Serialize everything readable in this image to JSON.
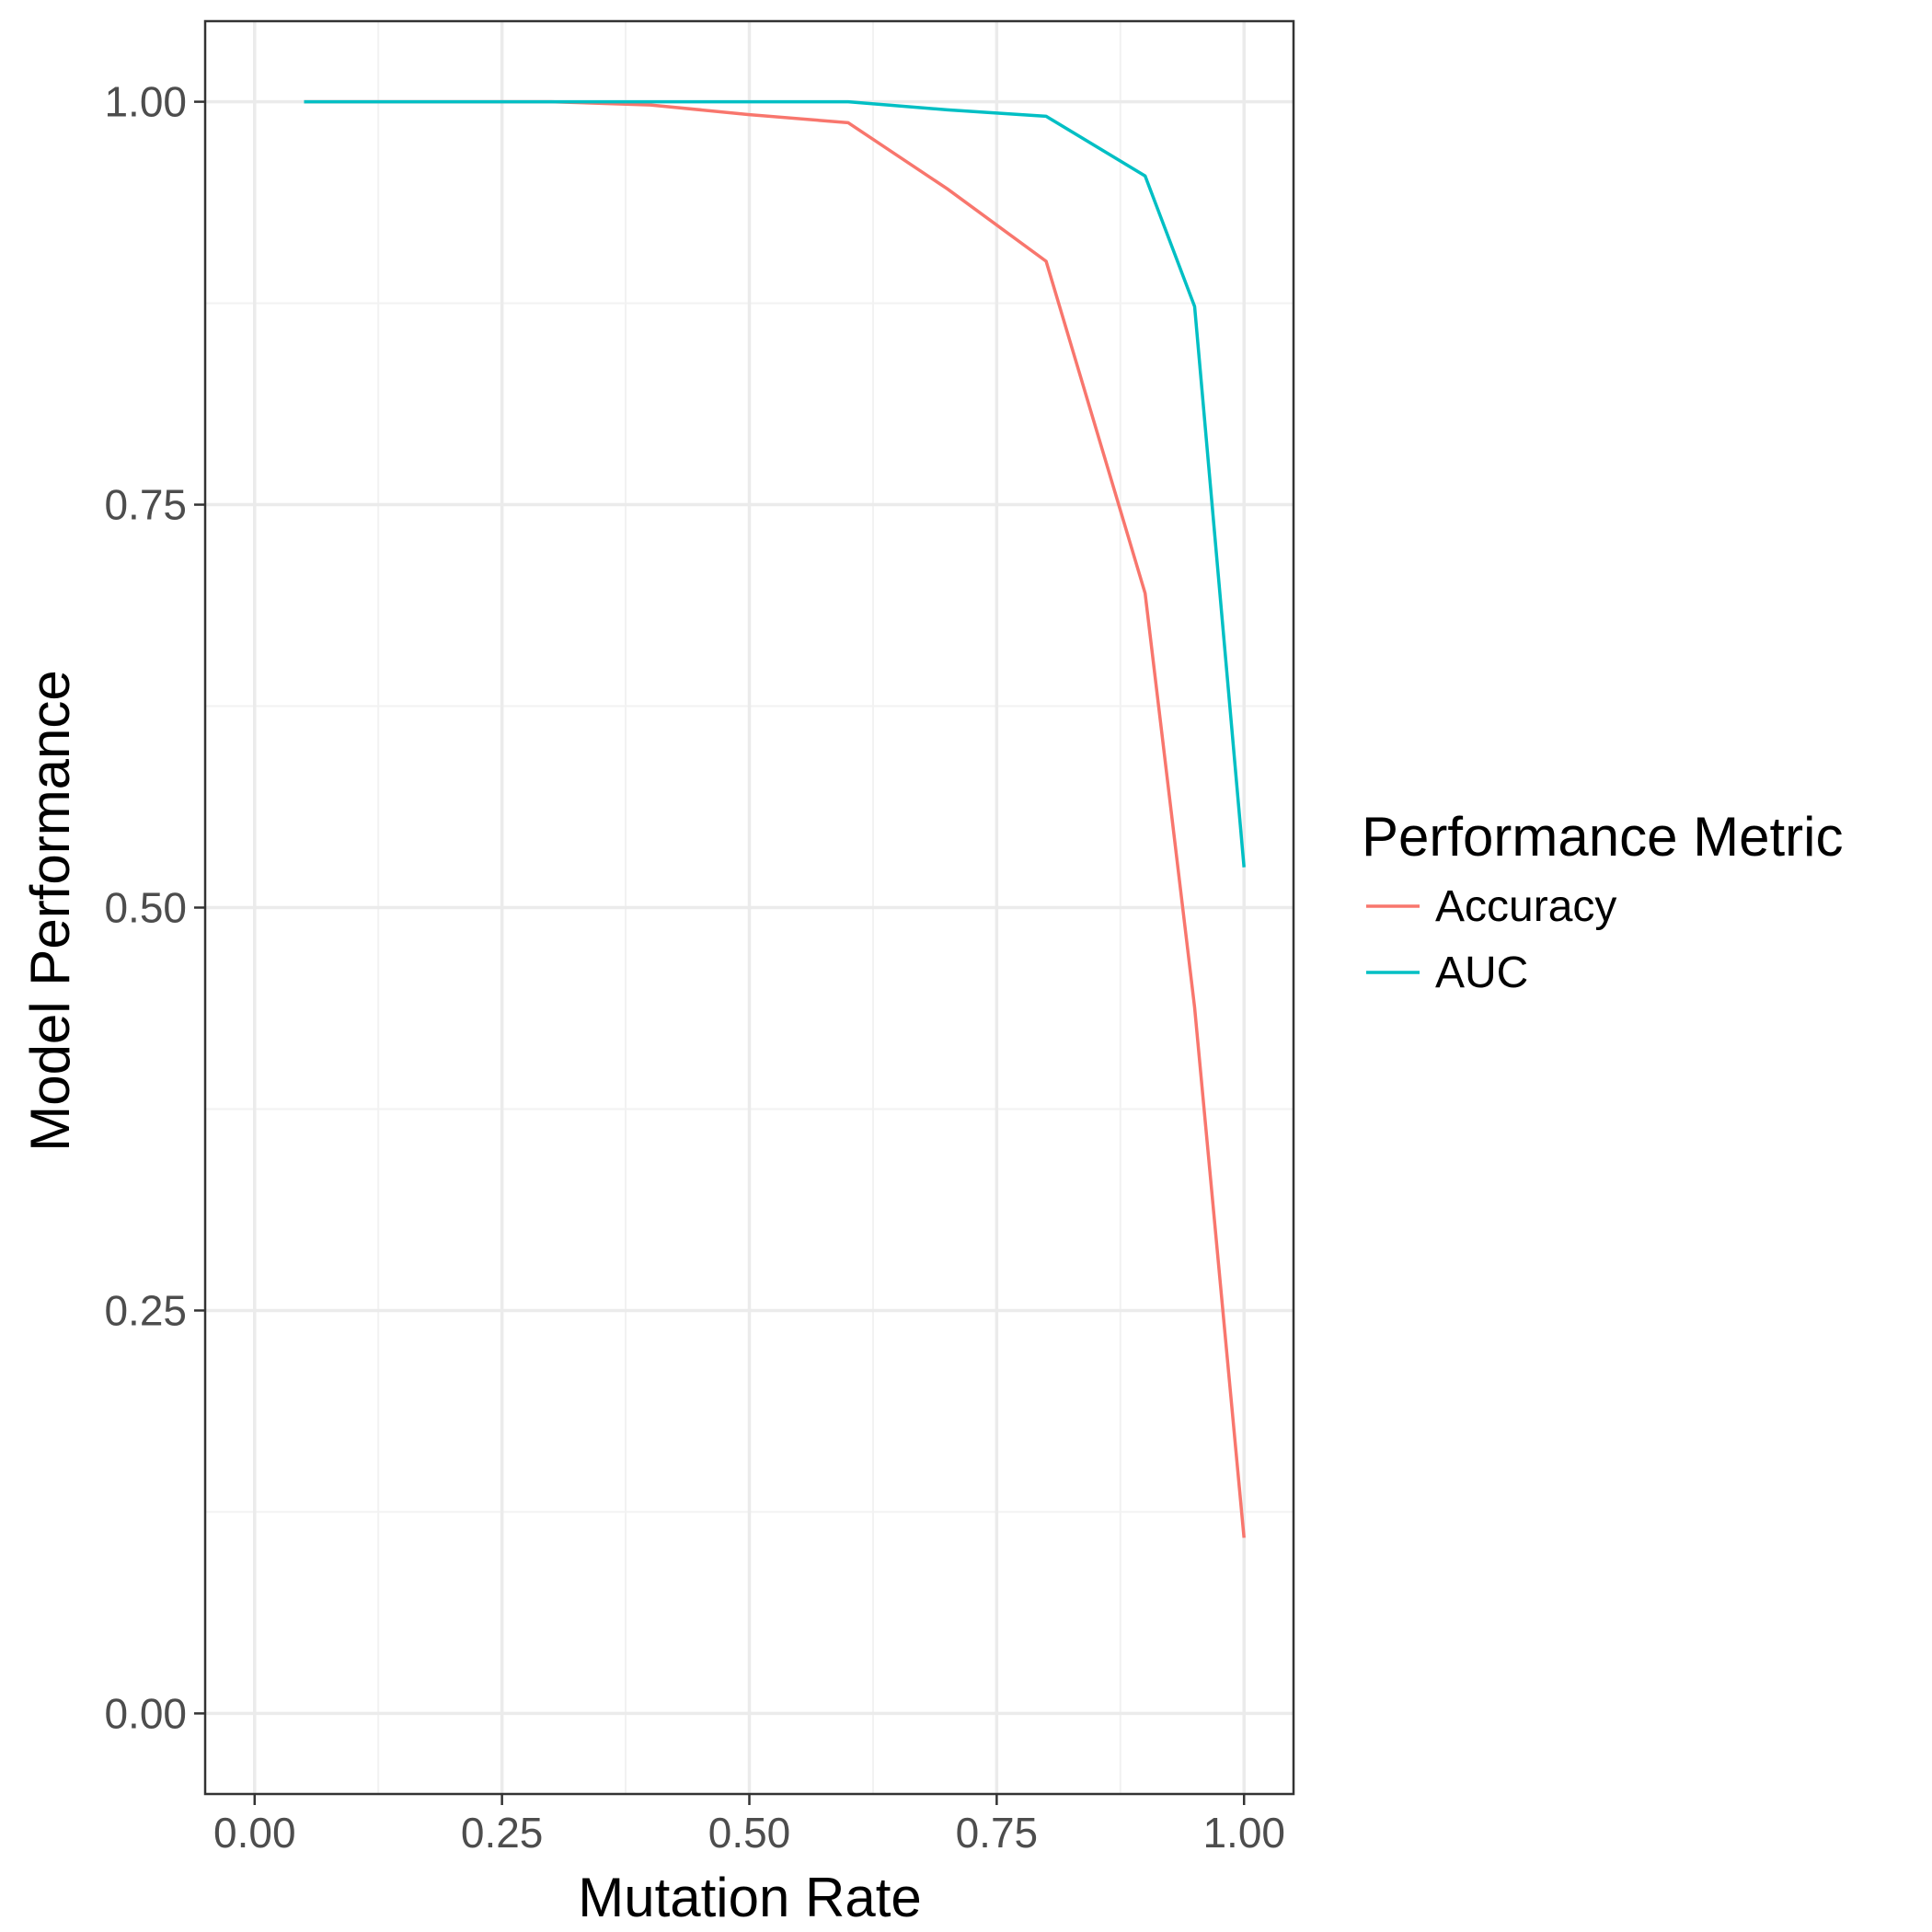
{
  "chart_data": {
    "type": "line",
    "xlabel": "Mutation Rate",
    "ylabel": "Model Performance",
    "xlim": [
      -0.05,
      1.05
    ],
    "ylim": [
      -0.05,
      1.05
    ],
    "x_ticks": [
      "0.00",
      "0.25",
      "0.50",
      "0.75",
      "1.00"
    ],
    "y_ticks": [
      "0.00",
      "0.25",
      "0.50",
      "0.75",
      "1.00"
    ],
    "grid": true,
    "legend": {
      "title": "Performance Metric",
      "position": "right"
    },
    "series": [
      {
        "name": "Accuracy",
        "color": "#F8766D",
        "x": [
          0.05,
          0.1,
          0.2,
          0.3,
          0.4,
          0.5,
          0.6,
          0.7,
          0.8,
          0.9,
          0.95,
          1.0
        ],
        "y": [
          1.0,
          1.0,
          1.0,
          1.0,
          0.998,
          0.992,
          0.987,
          0.946,
          0.901,
          0.695,
          0.438,
          0.109
        ]
      },
      {
        "name": "AUC",
        "color": "#00BFC4",
        "x": [
          0.05,
          0.1,
          0.2,
          0.3,
          0.4,
          0.5,
          0.6,
          0.7,
          0.8,
          0.9,
          0.95,
          1.0
        ],
        "y": [
          1.0,
          1.0,
          1.0,
          1.0,
          1.0,
          1.0,
          1.0,
          0.995,
          0.991,
          0.954,
          0.873,
          0.525
        ]
      }
    ]
  }
}
